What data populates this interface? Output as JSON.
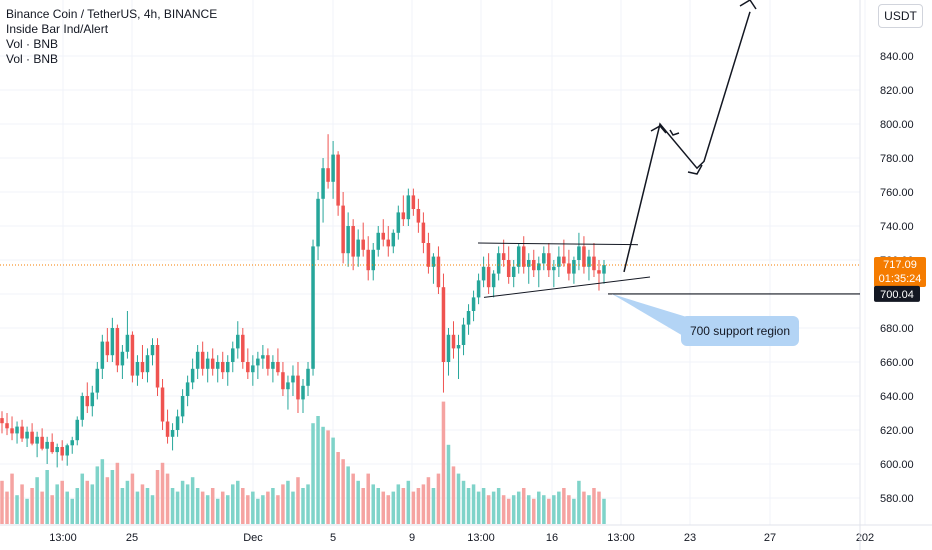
{
  "legend": {
    "title": "Binance Coin / TetherUS, 4h, BINANCE",
    "indicator": "Inside Bar Ind/Alert",
    "vol1": "Vol · BNB",
    "vol2": "Vol · BNB"
  },
  "currency_button": "USDT",
  "colors": {
    "up": "#26a69a",
    "down": "#ef5350",
    "vol_up": "#7fd3c9",
    "vol_down": "#f5a3a1",
    "price_line": "#f57c00",
    "grid": "#f0f3fa",
    "text": "#131722",
    "callout": "#b3d4f5",
    "drawing": "#131722"
  },
  "chart_data": {
    "type": "candlestick",
    "y_axis": {
      "ticks": [
        "840.00",
        "820.00",
        "800.00",
        "780.00",
        "760.00",
        "740.00",
        "720.00",
        "700.00",
        "680.00",
        "660.00",
        "640.00",
        "620.00",
        "600.00",
        "580.00"
      ],
      "range": [
        570,
        862
      ]
    },
    "x_axis": {
      "ticks": [
        "13:00",
        "25",
        "Dec",
        "5",
        "9",
        "13:00",
        "16",
        "13:00",
        "23",
        "27",
        "202"
      ]
    },
    "current_price": {
      "value": "717.09",
      "countdown": "01:35:24"
    },
    "support_label": {
      "value": "700.04"
    },
    "annotation": "700 support region",
    "candles_note": "OHLC estimated from the image; each entry is [open, high, low, close, volume]",
    "candles": [
      [
        627,
        631,
        618,
        624,
        12
      ],
      [
        624,
        630,
        617,
        621,
        9
      ],
      [
        621,
        628,
        614,
        618,
        14
      ],
      [
        618,
        625,
        612,
        622,
        8
      ],
      [
        622,
        626,
        613,
        615,
        11
      ],
      [
        615,
        622,
        610,
        619,
        7
      ],
      [
        619,
        624,
        611,
        612,
        10
      ],
      [
        612,
        619,
        604,
        616,
        13
      ],
      [
        616,
        621,
        608,
        609,
        9
      ],
      [
        609,
        616,
        600,
        613,
        15
      ],
      [
        613,
        618,
        606,
        607,
        8
      ],
      [
        607,
        612,
        598,
        610,
        11
      ],
      [
        610,
        614,
        602,
        605,
        12
      ],
      [
        605,
        612,
        599,
        611,
        9
      ],
      [
        611,
        616,
        606,
        614,
        7
      ],
      [
        614,
        628,
        611,
        626,
        10
      ],
      [
        626,
        642,
        622,
        640,
        14
      ],
      [
        640,
        648,
        630,
        634,
        12
      ],
      [
        634,
        646,
        628,
        642,
        11
      ],
      [
        642,
        660,
        638,
        656,
        16
      ],
      [
        656,
        676,
        650,
        672,
        18
      ],
      [
        672,
        680,
        660,
        664,
        13
      ],
      [
        664,
        686,
        660,
        680,
        15
      ],
      [
        680,
        682,
        654,
        658,
        17
      ],
      [
        658,
        670,
        650,
        666,
        10
      ],
      [
        666,
        690,
        662,
        676,
        12
      ],
      [
        676,
        678,
        648,
        652,
        14
      ],
      [
        652,
        664,
        646,
        660,
        9
      ],
      [
        660,
        670,
        650,
        654,
        11
      ],
      [
        654,
        668,
        648,
        664,
        10
      ],
      [
        664,
        674,
        658,
        670,
        8
      ],
      [
        670,
        674,
        640,
        645,
        15
      ],
      [
        645,
        650,
        620,
        625,
        17
      ],
      [
        625,
        632,
        612,
        616,
        14
      ],
      [
        616,
        624,
        608,
        620,
        10
      ],
      [
        620,
        632,
        616,
        628,
        9
      ],
      [
        628,
        644,
        624,
        640,
        12
      ],
      [
        640,
        652,
        634,
        648,
        11
      ],
      [
        648,
        662,
        644,
        656,
        13
      ],
      [
        656,
        670,
        650,
        666,
        10
      ],
      [
        666,
        672,
        652,
        656,
        9
      ],
      [
        656,
        666,
        648,
        662,
        8
      ],
      [
        662,
        668,
        652,
        656,
        10
      ],
      [
        656,
        664,
        648,
        660,
        7
      ],
      [
        660,
        666,
        650,
        654,
        9
      ],
      [
        654,
        664,
        646,
        660,
        8
      ],
      [
        660,
        672,
        654,
        668,
        11
      ],
      [
        668,
        684,
        662,
        676,
        12
      ],
      [
        676,
        680,
        656,
        660,
        10
      ],
      [
        660,
        668,
        650,
        654,
        8
      ],
      [
        654,
        664,
        646,
        658,
        9
      ],
      [
        658,
        666,
        650,
        662,
        7
      ],
      [
        662,
        670,
        656,
        664,
        8
      ],
      [
        664,
        668,
        652,
        656,
        9
      ],
      [
        656,
        664,
        648,
        660,
        10
      ],
      [
        660,
        668,
        652,
        654,
        8
      ],
      [
        654,
        660,
        640,
        644,
        11
      ],
      [
        644,
        652,
        632,
        648,
        12
      ],
      [
        648,
        658,
        640,
        652,
        9
      ],
      [
        652,
        660,
        630,
        638,
        13
      ],
      [
        638,
        650,
        630,
        646,
        10
      ],
      [
        646,
        660,
        640,
        656,
        11
      ],
      [
        656,
        732,
        652,
        728,
        28
      ],
      [
        728,
        760,
        720,
        756,
        30
      ],
      [
        756,
        780,
        742,
        774,
        27
      ],
      [
        774,
        794,
        762,
        766,
        26
      ],
      [
        766,
        790,
        756,
        782,
        24
      ],
      [
        782,
        784,
        746,
        752,
        20
      ],
      [
        752,
        760,
        718,
        724,
        18
      ],
      [
        724,
        748,
        716,
        740,
        16
      ],
      [
        740,
        744,
        714,
        722,
        14
      ],
      [
        722,
        738,
        716,
        732,
        12
      ],
      [
        732,
        742,
        722,
        726,
        10
      ],
      [
        726,
        734,
        708,
        714,
        14
      ],
      [
        714,
        730,
        708,
        726,
        11
      ],
      [
        726,
        740,
        722,
        736,
        10
      ],
      [
        736,
        744,
        728,
        732,
        9
      ],
      [
        732,
        740,
        722,
        728,
        8
      ],
      [
        728,
        738,
        724,
        736,
        9
      ],
      [
        736,
        752,
        732,
        748,
        11
      ],
      [
        748,
        758,
        740,
        744,
        10
      ],
      [
        744,
        762,
        740,
        758,
        12
      ],
      [
        758,
        762,
        746,
        750,
        9
      ],
      [
        750,
        756,
        736,
        742,
        10
      ],
      [
        742,
        748,
        724,
        730,
        11
      ],
      [
        730,
        736,
        712,
        716,
        13
      ],
      [
        716,
        724,
        706,
        722,
        10
      ],
      [
        722,
        728,
        700,
        704,
        14
      ],
      [
        704,
        712,
        642,
        660,
        34
      ],
      [
        660,
        680,
        652,
        676,
        22
      ],
      [
        676,
        684,
        662,
        668,
        16
      ],
      [
        668,
        676,
        650,
        670,
        14
      ],
      [
        670,
        686,
        664,
        682,
        12
      ],
      [
        682,
        694,
        676,
        690,
        10
      ],
      [
        690,
        702,
        684,
        698,
        11
      ],
      [
        698,
        712,
        694,
        708,
        9
      ],
      [
        708,
        722,
        704,
        716,
        10
      ],
      [
        716,
        724,
        700,
        704,
        8
      ],
      [
        704,
        714,
        698,
        712,
        9
      ],
      [
        712,
        728,
        708,
        724,
        10
      ],
      [
        724,
        732,
        716,
        720,
        8
      ],
      [
        720,
        728,
        706,
        710,
        7
      ],
      [
        710,
        720,
        704,
        716,
        8
      ],
      [
        716,
        730,
        712,
        728,
        9
      ],
      [
        728,
        734,
        712,
        716,
        10
      ],
      [
        716,
        724,
        706,
        720,
        8
      ],
      [
        720,
        726,
        710,
        714,
        7
      ],
      [
        714,
        722,
        704,
        718,
        9
      ],
      [
        718,
        728,
        714,
        724,
        8
      ],
      [
        724,
        730,
        710,
        714,
        7
      ],
      [
        714,
        720,
        704,
        716,
        8
      ],
      [
        716,
        728,
        710,
        722,
        9
      ],
      [
        722,
        732,
        716,
        718,
        10
      ],
      [
        718,
        726,
        708,
        712,
        8
      ],
      [
        712,
        722,
        706,
        720,
        7
      ],
      [
        720,
        736,
        714,
        728,
        12
      ],
      [
        728,
        734,
        712,
        716,
        9
      ],
      [
        716,
        726,
        708,
        722,
        8
      ],
      [
        722,
        730,
        710,
        714,
        10
      ],
      [
        714,
        720,
        702,
        712,
        9
      ],
      [
        712,
        720,
        706,
        717,
        7
      ]
    ]
  }
}
